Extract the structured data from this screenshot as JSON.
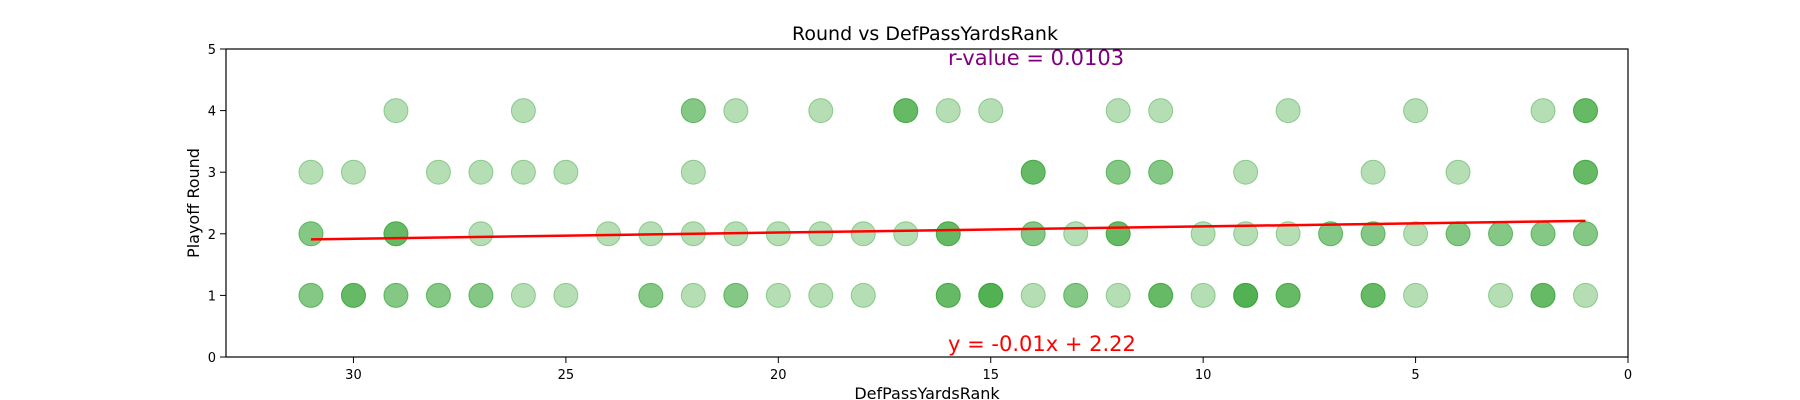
{
  "chart_data": {
    "type": "scatter",
    "title": "Round vs DefPassYardsRank",
    "xlabel": "DefPassYardsRank",
    "ylabel": "Playoff Round",
    "xlim": [
      33,
      0
    ],
    "ylim": [
      0,
      5
    ],
    "xticks": [
      "30",
      "25",
      "20",
      "15",
      "10",
      "5",
      "0"
    ],
    "yticks": [
      "0",
      "1",
      "2",
      "3",
      "4",
      "5"
    ],
    "grid": false,
    "annotations": {
      "rvalue": "r-value = 0.0103",
      "equation": "y = -0.01x + 2.22"
    },
    "regression": {
      "slope": -0.01,
      "intercept": 2.22,
      "x_range": [
        31,
        1
      ]
    },
    "colors": {
      "point": "#2ca02c",
      "line": "#ff0000",
      "rvalue": "#800080",
      "equation": "#ff0000"
    },
    "points": [
      {
        "x": 29,
        "y": 4,
        "count": 1
      },
      {
        "x": 26,
        "y": 4,
        "count": 1
      },
      {
        "x": 22,
        "y": 4,
        "count": 2
      },
      {
        "x": 21,
        "y": 4,
        "count": 1
      },
      {
        "x": 19,
        "y": 4,
        "count": 1
      },
      {
        "x": 17,
        "y": 4,
        "count": 3
      },
      {
        "x": 16,
        "y": 4,
        "count": 1
      },
      {
        "x": 15,
        "y": 4,
        "count": 1
      },
      {
        "x": 12,
        "y": 4,
        "count": 1
      },
      {
        "x": 11,
        "y": 4,
        "count": 1
      },
      {
        "x": 8,
        "y": 4,
        "count": 1
      },
      {
        "x": 5,
        "y": 4,
        "count": 1
      },
      {
        "x": 2,
        "y": 4,
        "count": 1
      },
      {
        "x": 1,
        "y": 4,
        "count": 3
      },
      {
        "x": 31,
        "y": 3,
        "count": 1
      },
      {
        "x": 30,
        "y": 3,
        "count": 1
      },
      {
        "x": 28,
        "y": 3,
        "count": 1
      },
      {
        "x": 27,
        "y": 3,
        "count": 1
      },
      {
        "x": 26,
        "y": 3,
        "count": 1
      },
      {
        "x": 25,
        "y": 3,
        "count": 1
      },
      {
        "x": 22,
        "y": 3,
        "count": 1
      },
      {
        "x": 14,
        "y": 3,
        "count": 3
      },
      {
        "x": 12,
        "y": 3,
        "count": 2
      },
      {
        "x": 11,
        "y": 3,
        "count": 2
      },
      {
        "x": 9,
        "y": 3,
        "count": 1
      },
      {
        "x": 6,
        "y": 3,
        "count": 1
      },
      {
        "x": 4,
        "y": 3,
        "count": 1
      },
      {
        "x": 1,
        "y": 3,
        "count": 3
      },
      {
        "x": 31,
        "y": 2,
        "count": 2
      },
      {
        "x": 29,
        "y": 2,
        "count": 3
      },
      {
        "x": 27,
        "y": 2,
        "count": 1
      },
      {
        "x": 24,
        "y": 2,
        "count": 1
      },
      {
        "x": 23,
        "y": 2,
        "count": 1
      },
      {
        "x": 22,
        "y": 2,
        "count": 1
      },
      {
        "x": 21,
        "y": 2,
        "count": 1
      },
      {
        "x": 20,
        "y": 2,
        "count": 1
      },
      {
        "x": 19,
        "y": 2,
        "count": 1
      },
      {
        "x": 18,
        "y": 2,
        "count": 1
      },
      {
        "x": 17,
        "y": 2,
        "count": 1
      },
      {
        "x": 16,
        "y": 2,
        "count": 3
      },
      {
        "x": 14,
        "y": 2,
        "count": 2
      },
      {
        "x": 13,
        "y": 2,
        "count": 1
      },
      {
        "x": 12,
        "y": 2,
        "count": 3
      },
      {
        "x": 10,
        "y": 2,
        "count": 1
      },
      {
        "x": 9,
        "y": 2,
        "count": 1
      },
      {
        "x": 8,
        "y": 2,
        "count": 1
      },
      {
        "x": 7,
        "y": 2,
        "count": 2
      },
      {
        "x": 6,
        "y": 2,
        "count": 2
      },
      {
        "x": 5,
        "y": 2,
        "count": 1
      },
      {
        "x": 4,
        "y": 2,
        "count": 2
      },
      {
        "x": 3,
        "y": 2,
        "count": 2
      },
      {
        "x": 2,
        "y": 2,
        "count": 2
      },
      {
        "x": 1,
        "y": 2,
        "count": 2
      },
      {
        "x": 31,
        "y": 1,
        "count": 2
      },
      {
        "x": 30,
        "y": 1,
        "count": 3
      },
      {
        "x": 29,
        "y": 1,
        "count": 2
      },
      {
        "x": 28,
        "y": 1,
        "count": 2
      },
      {
        "x": 27,
        "y": 1,
        "count": 2
      },
      {
        "x": 26,
        "y": 1,
        "count": 1
      },
      {
        "x": 25,
        "y": 1,
        "count": 1
      },
      {
        "x": 23,
        "y": 1,
        "count": 2
      },
      {
        "x": 22,
        "y": 1,
        "count": 1
      },
      {
        "x": 21,
        "y": 1,
        "count": 2
      },
      {
        "x": 20,
        "y": 1,
        "count": 1
      },
      {
        "x": 19,
        "y": 1,
        "count": 1
      },
      {
        "x": 18,
        "y": 1,
        "count": 1
      },
      {
        "x": 16,
        "y": 1,
        "count": 3
      },
      {
        "x": 15,
        "y": 1,
        "count": 4
      },
      {
        "x": 14,
        "y": 1,
        "count": 1
      },
      {
        "x": 13,
        "y": 1,
        "count": 2
      },
      {
        "x": 12,
        "y": 1,
        "count": 1
      },
      {
        "x": 11,
        "y": 1,
        "count": 3
      },
      {
        "x": 10,
        "y": 1,
        "count": 1
      },
      {
        "x": 9,
        "y": 1,
        "count": 4
      },
      {
        "x": 8,
        "y": 1,
        "count": 3
      },
      {
        "x": 6,
        "y": 1,
        "count": 3
      },
      {
        "x": 5,
        "y": 1,
        "count": 1
      },
      {
        "x": 3,
        "y": 1,
        "count": 1
      },
      {
        "x": 2,
        "y": 1,
        "count": 3
      },
      {
        "x": 1,
        "y": 1,
        "count": 1
      }
    ]
  }
}
